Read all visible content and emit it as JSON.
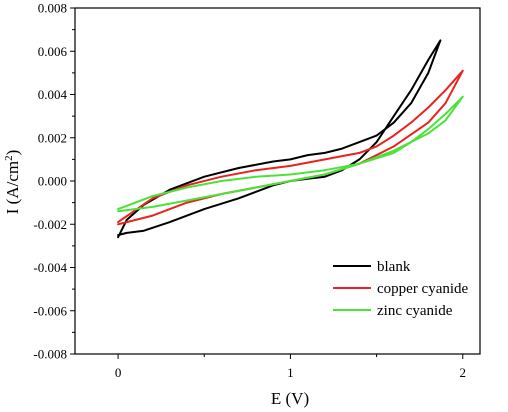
{
  "chart_data": {
    "type": "line",
    "title": "",
    "xlabel": "E (V)",
    "ylabel_main": "I (A/cm",
    "ylabel_sup": "2",
    "ylabel_close": ")",
    "xlim": [
      -0.25,
      2.1
    ],
    "ylim": [
      -0.008,
      0.008
    ],
    "x_ticks": [
      0,
      1,
      2
    ],
    "x_tick_labels": [
      "0",
      "1",
      "2"
    ],
    "y_ticks": [
      -0.008,
      -0.006,
      -0.004,
      -0.002,
      0.0,
      0.002,
      0.004,
      0.006,
      0.008
    ],
    "y_tick_labels": [
      "-0.008",
      "-0.006",
      "-0.004",
      "-0.002",
      "0.000",
      "0.002",
      "0.004",
      "0.006",
      "0.008"
    ],
    "grid": false,
    "legend_position": "bottom-right",
    "series": [
      {
        "name": "blank",
        "color": "#000000",
        "points": [
          [
            0.0,
            -0.0025
          ],
          [
            0.05,
            -0.0024
          ],
          [
            0.15,
            -0.0023
          ],
          [
            0.3,
            -0.0019
          ],
          [
            0.5,
            -0.0013
          ],
          [
            0.7,
            -0.0008
          ],
          [
            0.9,
            -0.0002
          ],
          [
            1.0,
            0.0
          ],
          [
            1.1,
            0.0001
          ],
          [
            1.2,
            0.0002
          ],
          [
            1.3,
            0.0005
          ],
          [
            1.4,
            0.001
          ],
          [
            1.5,
            0.0018
          ],
          [
            1.6,
            0.003
          ],
          [
            1.7,
            0.0042
          ],
          [
            1.8,
            0.0056
          ],
          [
            1.87,
            0.0065
          ],
          [
            1.8,
            0.005
          ],
          [
            1.7,
            0.0036
          ],
          [
            1.6,
            0.0027
          ],
          [
            1.5,
            0.0021
          ],
          [
            1.4,
            0.0018
          ],
          [
            1.3,
            0.0015
          ],
          [
            1.2,
            0.0013
          ],
          [
            1.1,
            0.0012
          ],
          [
            1.0,
            0.001
          ],
          [
            0.9,
            0.0009
          ],
          [
            0.7,
            0.0006
          ],
          [
            0.5,
            0.0002
          ],
          [
            0.3,
            -0.0004
          ],
          [
            0.15,
            -0.0011
          ],
          [
            0.05,
            -0.0018
          ],
          [
            0.0,
            -0.0026
          ]
        ]
      },
      {
        "name": "copper cyanide",
        "color": "#e8241f",
        "points": [
          [
            0.0,
            -0.002
          ],
          [
            0.2,
            -0.0016
          ],
          [
            0.4,
            -0.001
          ],
          [
            0.6,
            -0.0006
          ],
          [
            0.8,
            -0.0003
          ],
          [
            1.0,
            0.0
          ],
          [
            1.2,
            0.0003
          ],
          [
            1.4,
            0.0008
          ],
          [
            1.6,
            0.0016
          ],
          [
            1.8,
            0.0027
          ],
          [
            1.9,
            0.0036
          ],
          [
            2.0,
            0.0051
          ],
          [
            1.9,
            0.0042
          ],
          [
            1.8,
            0.0034
          ],
          [
            1.7,
            0.0027
          ],
          [
            1.6,
            0.0021
          ],
          [
            1.5,
            0.0016
          ],
          [
            1.4,
            0.0013
          ],
          [
            1.2,
            0.001
          ],
          [
            1.0,
            0.0007
          ],
          [
            0.8,
            0.0005
          ],
          [
            0.6,
            0.0002
          ],
          [
            0.4,
            -0.0002
          ],
          [
            0.2,
            -0.0008
          ],
          [
            0.0,
            -0.0019
          ]
        ]
      },
      {
        "name": "zinc cyanide",
        "color": "#4be33b",
        "points": [
          [
            0.0,
            -0.0014
          ],
          [
            0.2,
            -0.0012
          ],
          [
            0.4,
            -0.0009
          ],
          [
            0.6,
            -0.0006
          ],
          [
            0.8,
            -0.0003
          ],
          [
            1.0,
            0.0
          ],
          [
            1.2,
            0.0003
          ],
          [
            1.4,
            0.0008
          ],
          [
            1.6,
            0.0014
          ],
          [
            1.8,
            0.0022
          ],
          [
            1.9,
            0.0028
          ],
          [
            2.0,
            0.0039
          ],
          [
            1.9,
            0.0031
          ],
          [
            1.8,
            0.0024
          ],
          [
            1.7,
            0.0018
          ],
          [
            1.6,
            0.0013
          ],
          [
            1.4,
            0.0008
          ],
          [
            1.2,
            0.0005
          ],
          [
            1.0,
            0.0003
          ],
          [
            0.8,
            0.0002
          ],
          [
            0.6,
            0.0
          ],
          [
            0.4,
            -0.0003
          ],
          [
            0.2,
            -0.0007
          ],
          [
            0.0,
            -0.0013
          ]
        ]
      }
    ]
  }
}
